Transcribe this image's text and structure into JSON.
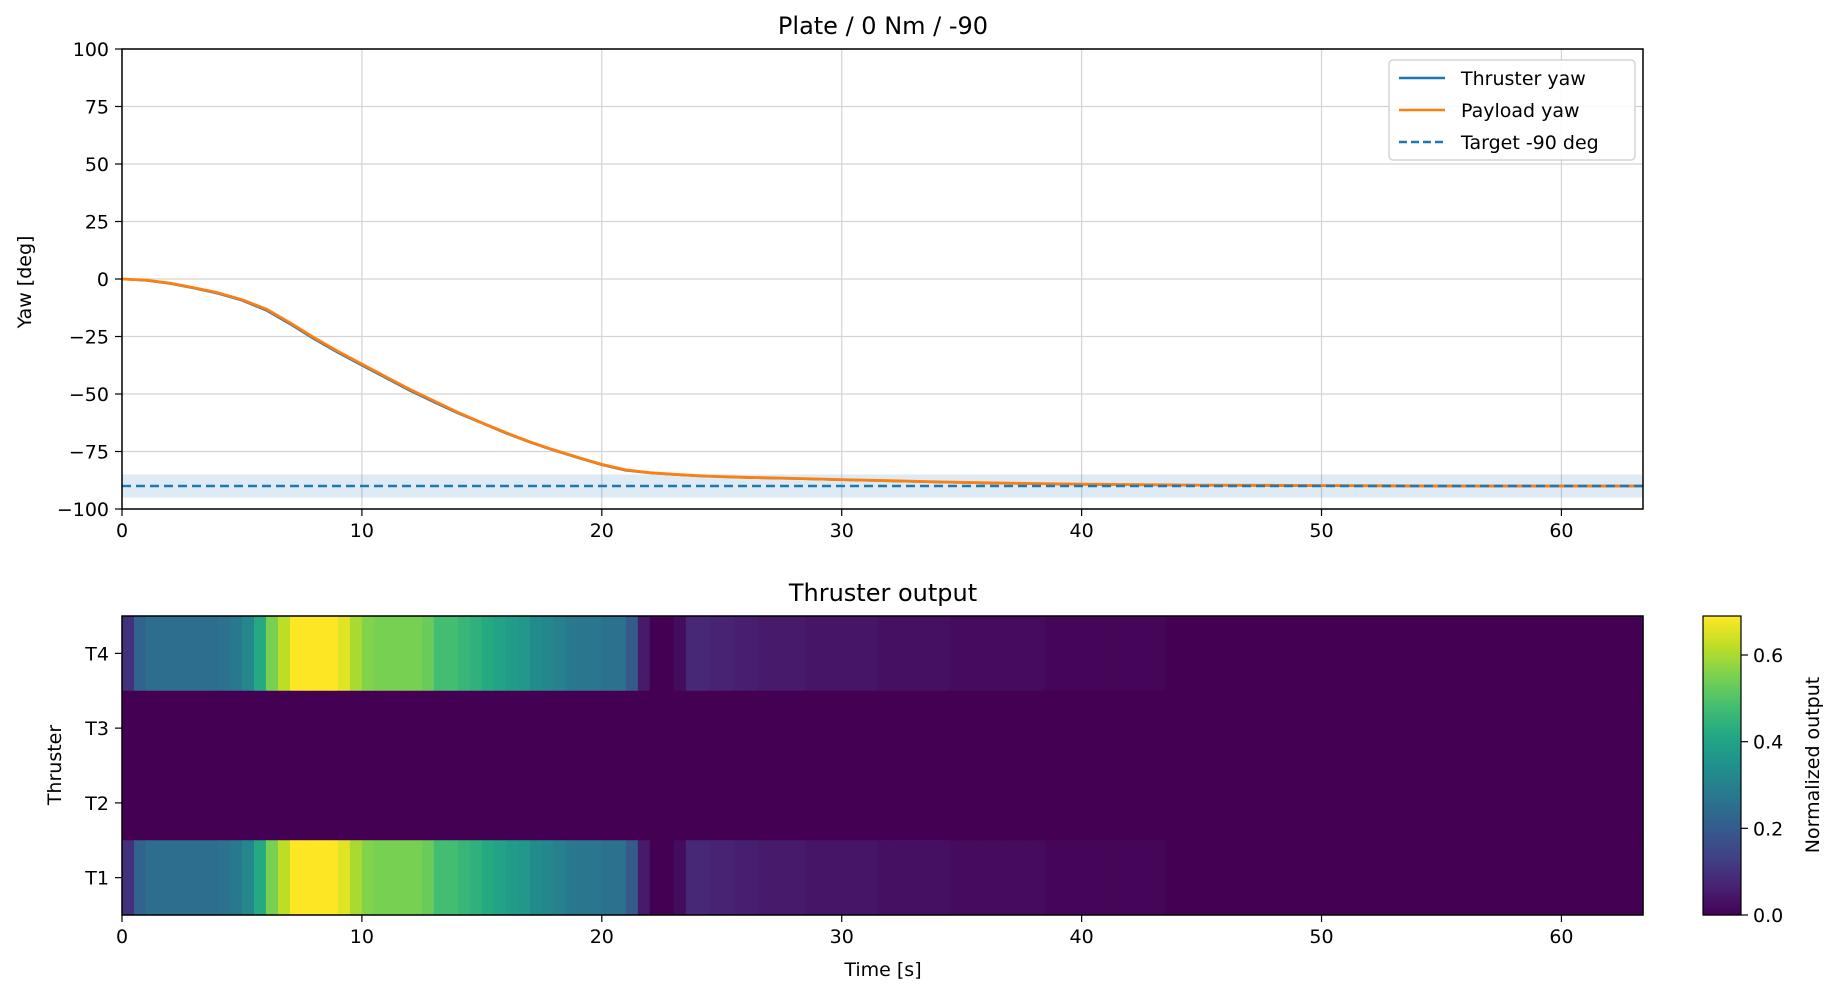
{
  "chart_data": [
    {
      "type": "line",
      "title": "Plate / 0 Nm / -90",
      "xlabel": "",
      "ylabel": "Yaw [deg]",
      "xlim": [
        0,
        63.4
      ],
      "ylim": [
        -100,
        100
      ],
      "xticks": [
        "0",
        "10",
        "20",
        "30",
        "40",
        "50",
        "60"
      ],
      "yticks": [
        "100",
        "75",
        "50",
        "25",
        "0",
        "−25",
        "−50",
        "−75",
        "−100"
      ],
      "grid": true,
      "legend_position": "top-right",
      "target_band": [
        -95,
        -85
      ],
      "series": [
        {
          "name": "Thruster yaw",
          "color": "#1f77b4",
          "style": "solid",
          "x": [
            0,
            1,
            2,
            3,
            4,
            5,
            6,
            7,
            8,
            9,
            10,
            11,
            12,
            13,
            14,
            15,
            16,
            17,
            18,
            19,
            20,
            21,
            22,
            23,
            24,
            25,
            26,
            28,
            30,
            32,
            34,
            36,
            38,
            40,
            45,
            50,
            55,
            60,
            63.4
          ],
          "values": [
            0,
            -0.6,
            -2,
            -4,
            -6.3,
            -9.3,
            -13.5,
            -19.5,
            -26,
            -32,
            -37.5,
            -43,
            -48.5,
            -53.5,
            -58.3,
            -62.7,
            -67,
            -71,
            -74.5,
            -77.7,
            -80.8,
            -83.2,
            -84.3,
            -85,
            -85.6,
            -86,
            -86.3,
            -86.8,
            -87.3,
            -87.8,
            -88.3,
            -88.7,
            -89,
            -89.3,
            -89.7,
            -89.9,
            -90,
            -90,
            -90
          ]
        },
        {
          "name": "Payload yaw",
          "color": "#ff7f0e",
          "style": "solid",
          "x": [
            0,
            1,
            2,
            3,
            4,
            5,
            6,
            7,
            8,
            9,
            10,
            11,
            12,
            13,
            14,
            15,
            16,
            17,
            18,
            19,
            20,
            21,
            22,
            23,
            24,
            25,
            26,
            28,
            30,
            32,
            34,
            36,
            38,
            40,
            45,
            50,
            55,
            60,
            63.4
          ],
          "values": [
            0,
            -0.5,
            -1.8,
            -3.8,
            -6,
            -9,
            -13,
            -19,
            -25.5,
            -31.5,
            -37,
            -42.5,
            -48,
            -53,
            -58,
            -62.5,
            -66.8,
            -70.8,
            -74.3,
            -77.5,
            -80.6,
            -83,
            -84.2,
            -84.9,
            -85.5,
            -85.9,
            -86.2,
            -86.7,
            -87.2,
            -87.7,
            -88.2,
            -88.6,
            -88.9,
            -89.2,
            -89.6,
            -89.8,
            -90,
            -90,
            -90
          ]
        },
        {
          "name": "Target -90 deg",
          "color": "#1f77b4",
          "style": "dashed",
          "x": [
            0,
            63.4
          ],
          "values": [
            -90,
            -90
          ]
        }
      ]
    },
    {
      "type": "heatmap",
      "title": "Thruster output",
      "xlabel": "Time [s]",
      "ylabel": "Thruster",
      "colorbar_label": "Normalized output",
      "xlim": [
        0,
        63.4
      ],
      "xticks": [
        "0",
        "10",
        "20",
        "30",
        "40",
        "50",
        "60"
      ],
      "rows": [
        "T4",
        "T3",
        "T2",
        "T1"
      ],
      "colorbar_range": [
        0,
        0.69
      ],
      "colorbar_ticks": [
        "0.0",
        "0.2",
        "0.4",
        "0.6"
      ],
      "colormap": "viridis",
      "time_step": 0.5,
      "row_values": {
        "T4": [
          0.1,
          0.22,
          0.25,
          0.25,
          0.25,
          0.25,
          0.25,
          0.25,
          0.26,
          0.28,
          0.32,
          0.42,
          0.55,
          0.62,
          0.69,
          0.69,
          0.69,
          0.69,
          0.66,
          0.6,
          0.56,
          0.55,
          0.55,
          0.55,
          0.55,
          0.53,
          0.48,
          0.48,
          0.46,
          0.44,
          0.42,
          0.4,
          0.38,
          0.37,
          0.33,
          0.32,
          0.3,
          0.28,
          0.27,
          0.27,
          0.26,
          0.26,
          0.2,
          0.05,
          0.0,
          0.0,
          0.02,
          0.08,
          0.08,
          0.07,
          0.07,
          0.06,
          0.06,
          0.05,
          0.05,
          0.05,
          0.05,
          0.04,
          0.04,
          0.04,
          0.04,
          0.04,
          0.04,
          0.03,
          0.03,
          0.03,
          0.03,
          0.03,
          0.03,
          0.02,
          0.02,
          0.02,
          0.02,
          0.02,
          0.02,
          0.02,
          0.02,
          0.01,
          0.01,
          0.01,
          0.01,
          0.01,
          0.01,
          0.01,
          0.01,
          0.01,
          0.01,
          0.0,
          0.0,
          0.0,
          0.0,
          0.0,
          0.0,
          0.0,
          0.0,
          0.0,
          0.0,
          0.0,
          0.0,
          0.0,
          0.0,
          0.0,
          0.0,
          0.0,
          0.0,
          0.0,
          0.0,
          0.0,
          0.0,
          0.0,
          0.0,
          0.0,
          0.0,
          0.0,
          0.0,
          0.0,
          0.0,
          0.0,
          0.0,
          0.0,
          0.0,
          0.0,
          0.0,
          0.0,
          0.0,
          0.0,
          0.0
        ],
        "T3": [
          0.0
        ],
        "T2": [
          0.0
        ],
        "T1": [
          0.1,
          0.22,
          0.25,
          0.25,
          0.25,
          0.25,
          0.25,
          0.25,
          0.26,
          0.28,
          0.32,
          0.42,
          0.55,
          0.62,
          0.69,
          0.69,
          0.69,
          0.69,
          0.66,
          0.6,
          0.56,
          0.55,
          0.55,
          0.55,
          0.55,
          0.53,
          0.48,
          0.48,
          0.46,
          0.44,
          0.42,
          0.4,
          0.38,
          0.37,
          0.33,
          0.32,
          0.3,
          0.28,
          0.27,
          0.27,
          0.26,
          0.26,
          0.2,
          0.05,
          0.0,
          0.0,
          0.02,
          0.08,
          0.08,
          0.07,
          0.07,
          0.06,
          0.06,
          0.05,
          0.05,
          0.05,
          0.05,
          0.04,
          0.04,
          0.04,
          0.04,
          0.04,
          0.04,
          0.03,
          0.03,
          0.03,
          0.03,
          0.03,
          0.03,
          0.02,
          0.02,
          0.02,
          0.02,
          0.02,
          0.02,
          0.02,
          0.02,
          0.01,
          0.01,
          0.01,
          0.01,
          0.01,
          0.01,
          0.01,
          0.01,
          0.01,
          0.01,
          0.0,
          0.0,
          0.0,
          0.0,
          0.0,
          0.0,
          0.0,
          0.0,
          0.0,
          0.0,
          0.0,
          0.0,
          0.0,
          0.0,
          0.0,
          0.0,
          0.0,
          0.0,
          0.0,
          0.0,
          0.0,
          0.0,
          0.0,
          0.0,
          0.0,
          0.0,
          0.0,
          0.0,
          0.0,
          0.0,
          0.0,
          0.0,
          0.0,
          0.0,
          0.0,
          0.0,
          0.0,
          0.0,
          0.0,
          0.0
        ]
      }
    }
  ]
}
